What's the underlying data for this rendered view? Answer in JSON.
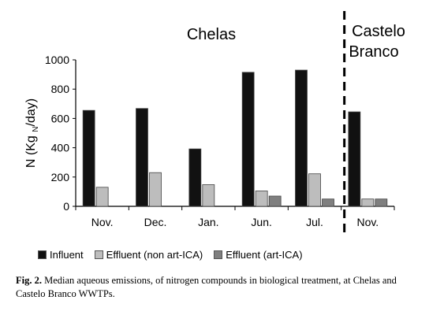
{
  "chart_data": {
    "type": "bar",
    "ylabel": "N (Kg N/day)",
    "ylabel_main": "N (Kg",
    "ylabel_sub": "N",
    "ylabel_tail": "/day)",
    "ylim": [
      0,
      1000
    ],
    "yticks": [
      0,
      200,
      400,
      600,
      800,
      1000
    ],
    "grid": false,
    "legend_position": "bottom",
    "groups": [
      {
        "name": "Chelas",
        "categories": [
          "Nov.",
          "Dec.",
          "Jan.",
          "Jun.",
          "Jul."
        ]
      },
      {
        "name": "Castelo Branco",
        "name_lines": [
          "Castelo",
          "Branco"
        ],
        "categories": [
          "Nov."
        ]
      }
    ],
    "categories": [
      "Nov.",
      "Dec.",
      "Jan.",
      "Jun.",
      "Jul.",
      "Nov."
    ],
    "series": [
      {
        "name": "Influent",
        "color": "#111111",
        "values": [
          655,
          668,
          392,
          915,
          930,
          645
        ]
      },
      {
        "name": "Effluent (non art-ICA)",
        "color": "#bdbdbd",
        "values": [
          130,
          230,
          148,
          105,
          222,
          50
        ]
      },
      {
        "name": "Effluent (art-ICA)",
        "color": "#7f7f7f",
        "values": [
          null,
          null,
          null,
          70,
          50,
          50
        ]
      }
    ]
  },
  "caption": {
    "label": "Fig. 2.",
    "text": " Median aqueous emissions, of nitrogen compounds in biological treatment, at Chelas and Castelo Branco WWTPs."
  }
}
